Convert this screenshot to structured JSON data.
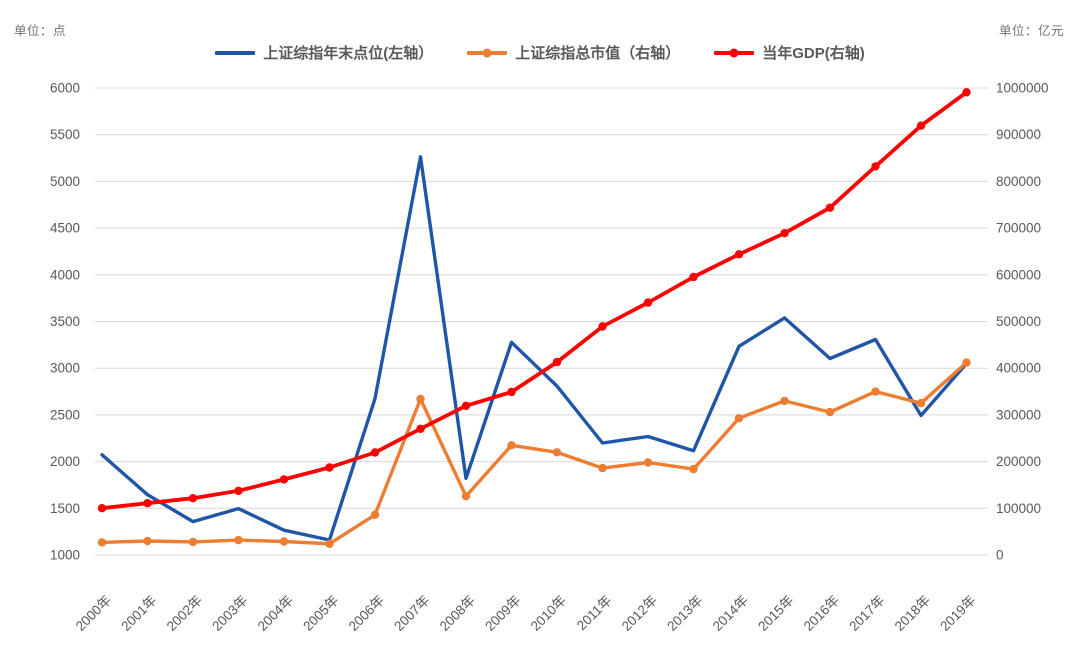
{
  "units": {
    "left": "单位：点",
    "right": "单位：亿元"
  },
  "chart_data": {
    "type": "line",
    "title": "",
    "categories": [
      "2000年",
      "2001年",
      "2002年",
      "2003年",
      "2004年",
      "2005年",
      "2006年",
      "2007年",
      "2008年",
      "2009年",
      "2010年",
      "2011年",
      "2012年",
      "2013年",
      "2014年",
      "2015年",
      "2016年",
      "2017年",
      "2018年",
      "2019年"
    ],
    "series": [
      {
        "name": "上证综指年末点位(左轴）",
        "axis": "left",
        "color": "#1F56A8",
        "marker": "none",
        "line_width": 3.4,
        "values": [
          2073,
          1646,
          1358,
          1497,
          1266,
          1161,
          2675,
          5262,
          1821,
          3277,
          2808,
          2199,
          2269,
          2116,
          3235,
          3539,
          3104,
          3307,
          2494,
          3050
        ]
      },
      {
        "name": "上证综指总市值（右轴）",
        "axis": "right",
        "color": "#ED7D31",
        "marker": "circle",
        "line_width": 3.4,
        "values": [
          27000,
          30000,
          28000,
          32000,
          29000,
          24000,
          86000,
          334000,
          126000,
          235000,
          220000,
          186000,
          198000,
          184000,
          293000,
          330000,
          306000,
          350000,
          325000,
          412000
        ]
      },
      {
        "name": "当年GDP(右轴)",
        "axis": "right",
        "color": "#FF0000",
        "marker": "circle",
        "line_width": 3.8,
        "values": [
          100280,
          110863,
          121717,
          137422,
          161840,
          187319,
          219439,
          270232,
          319516,
          349081,
          413030,
          489301,
          540367,
          595244,
          643974,
          689052,
          743586,
          832036,
          919281,
          990865
        ]
      }
    ],
    "left_axis": {
      "unit": "单位：点",
      "min": 1000,
      "max": 6000,
      "step": 500,
      "ticks": [
        "1000",
        "1500",
        "2000",
        "2500",
        "3000",
        "3500",
        "4000",
        "4500",
        "5000",
        "5500",
        "6000"
      ]
    },
    "right_axis": {
      "unit": "单位：亿元",
      "min": 0,
      "max": 1000000,
      "step": 100000,
      "ticks": [
        "0",
        "100000",
        "200000",
        "300000",
        "400000",
        "500000",
        "600000",
        "700000",
        "800000",
        "900000",
        "1000000"
      ]
    },
    "grid": true,
    "gridline_color": "#D9D9D9",
    "axis_label_color": "#595959",
    "legend_position": "top"
  }
}
